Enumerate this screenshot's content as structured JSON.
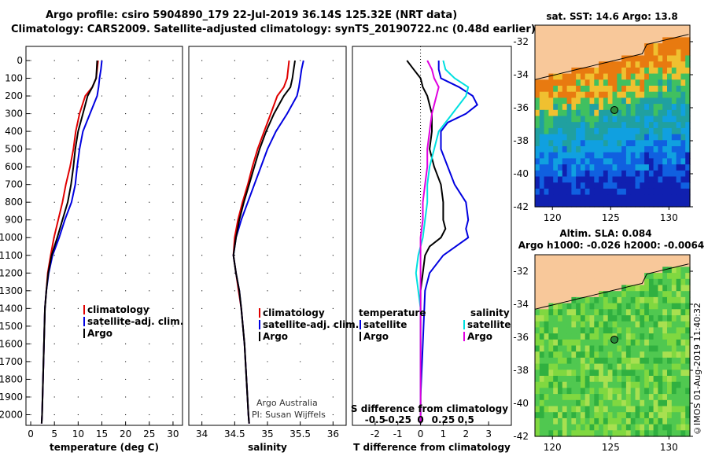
{
  "header": {
    "title_line1": "Argo profile: csiro 5904890_179 22-Jul-2019 36.14S 125.32E (NRT data)",
    "title_line2": "Climatology: CARS2009. Satellite-adjusted climatology: synTS_20190722.nc (0.48d earlier)"
  },
  "footer": {
    "stamp": "©IMOS 01-Aug-2019 11:40:32"
  },
  "colors": {
    "climatology": "#e00000",
    "satellite": "#0000e0",
    "argo": "#000000",
    "sat_salinity": "#00e0e0",
    "argo_salinity": "#e000e0",
    "land": "#f8c89a"
  },
  "chart_data": [
    {
      "type": "line",
      "name": "temperature",
      "xlabel": "temperature (deg C)",
      "ylabel": "",
      "xlim": [
        -1,
        32
      ],
      "ylim": [
        2060,
        0
      ],
      "xticks": [
        0,
        5,
        10,
        15,
        20,
        25,
        30
      ],
      "yticks": [
        0,
        100,
        200,
        300,
        400,
        500,
        600,
        700,
        800,
        900,
        1000,
        1100,
        1200,
        1300,
        1400,
        1500,
        1600,
        1700,
        1800,
        1900,
        2000
      ],
      "legend": [
        "climatology",
        "satellite-adj. clim.",
        "Argo"
      ],
      "series": [
        {
          "name": "climatology",
          "y": [
            0,
            50,
            100,
            150,
            200,
            300,
            400,
            500,
            600,
            700,
            800,
            900,
            1000,
            1100,
            1200,
            1300,
            1400,
            1600,
            1800,
            2000,
            2050
          ],
          "x": [
            14.2,
            14.0,
            13.8,
            13.0,
            11.5,
            10.3,
            9.5,
            9.0,
            8.3,
            7.4,
            6.7,
            5.8,
            4.9,
            4.2,
            3.6,
            3.3,
            3.0,
            2.8,
            2.6,
            2.4,
            2.3
          ]
        },
        {
          "name": "satellite-adj. clim.",
          "y": [
            0,
            50,
            100,
            150,
            200,
            300,
            400,
            500,
            600,
            700,
            800,
            900,
            1000,
            1100,
            1200,
            1300,
            1400,
            1600,
            1800,
            2000,
            2050
          ],
          "x": [
            15.0,
            14.8,
            14.5,
            14.3,
            14.0,
            12.5,
            11.0,
            10.3,
            9.8,
            9.4,
            8.6,
            7.2,
            6.0,
            4.6,
            3.8,
            3.3,
            3.0,
            2.8,
            2.6,
            2.4,
            2.3
          ]
        },
        {
          "name": "Argo",
          "y": [
            0,
            50,
            100,
            150,
            200,
            300,
            400,
            500,
            600,
            700,
            800,
            900,
            1000,
            1100,
            1200,
            1300,
            1400,
            1600,
            1800,
            2000,
            2050
          ],
          "x": [
            14.0,
            13.9,
            13.8,
            13.0,
            12.0,
            11.0,
            10.0,
            9.4,
            9.0,
            8.5,
            7.8,
            6.7,
            5.6,
            4.4,
            3.7,
            3.3,
            3.0,
            2.8,
            2.6,
            2.4,
            2.3
          ]
        }
      ]
    },
    {
      "type": "line",
      "name": "salinity",
      "xlabel": "salinity",
      "xlim": [
        33.8,
        36.2
      ],
      "ylim": [
        2060,
        0
      ],
      "xticks": [
        34,
        34.5,
        35,
        35.5,
        36
      ],
      "legend": [
        "climatology",
        "satellite-adj. clim.",
        "Argo"
      ],
      "annotation": [
        "Argo Australia",
        "PI: Susan Wijffels"
      ],
      "series": [
        {
          "name": "climatology",
          "y": [
            0,
            100,
            150,
            200,
            300,
            400,
            500,
            600,
            700,
            800,
            900,
            1000,
            1100,
            1200,
            1300,
            1400,
            1600,
            1800,
            2000,
            2050
          ],
          "x": [
            35.33,
            35.3,
            35.25,
            35.15,
            35.05,
            34.95,
            34.85,
            34.77,
            34.7,
            34.62,
            34.55,
            34.5,
            34.48,
            34.52,
            34.56,
            34.6,
            34.65,
            34.68,
            34.71,
            34.72
          ]
        },
        {
          "name": "satellite-adj. clim.",
          "y": [
            0,
            50,
            100,
            150,
            200,
            300,
            400,
            500,
            600,
            700,
            800,
            900,
            1000,
            1100,
            1200,
            1300,
            1400,
            1600,
            1800,
            2000,
            2050
          ],
          "x": [
            35.55,
            35.52,
            35.5,
            35.48,
            35.45,
            35.3,
            35.13,
            35.0,
            34.9,
            34.8,
            34.7,
            34.6,
            34.52,
            34.48,
            34.52,
            34.57,
            34.6,
            34.65,
            34.68,
            34.71,
            34.72
          ]
        },
        {
          "name": "Argo",
          "y": [
            0,
            50,
            100,
            150,
            200,
            300,
            400,
            500,
            600,
            700,
            800,
            900,
            1000,
            1100,
            1200,
            1300,
            1400,
            1600,
            1800,
            2000,
            2050
          ],
          "x": [
            35.42,
            35.4,
            35.38,
            35.35,
            35.25,
            35.1,
            34.98,
            34.88,
            34.8,
            34.72,
            34.64,
            34.57,
            34.52,
            34.48,
            34.52,
            34.57,
            34.6,
            34.65,
            34.68,
            34.71,
            34.72
          ]
        }
      ]
    },
    {
      "type": "line",
      "name": "difference from climatology",
      "xlabel": "T difference from climatology",
      "top_axis_label": "S difference from climatology",
      "xlim": [
        -3,
        4
      ],
      "ylim": [
        2060,
        0
      ],
      "xticks": [
        -2,
        -1,
        0,
        1,
        2,
        3
      ],
      "top_ticks": [
        "-0.5",
        "-0.25",
        "0",
        "0.25",
        "0.5"
      ],
      "top_tick_positions": [
        -2,
        -1,
        0,
        1,
        2
      ],
      "legend_left": {
        "header": "temperature",
        "items": [
          "satellite",
          "Argo"
        ]
      },
      "legend_right": {
        "header": "salinity",
        "items": [
          "satellite",
          "Argo"
        ]
      },
      "series": [
        {
          "name": "temperature satellite",
          "y": [
            0,
            50,
            100,
            150,
            200,
            250,
            300,
            350,
            400,
            500,
            600,
            700,
            800,
            900,
            950,
            1000,
            1100,
            1200,
            1300,
            1600,
            1900,
            2050
          ],
          "x": [
            0.8,
            0.8,
            0.9,
            1.7,
            2.3,
            2.5,
            2.0,
            1.2,
            0.9,
            0.9,
            1.2,
            1.5,
            2.0,
            2.1,
            2.0,
            2.1,
            1.0,
            0.4,
            0.2,
            0.1,
            0.0,
            0.0
          ]
        },
        {
          "name": "temperature Argo",
          "y": [
            0,
            50,
            100,
            150,
            200,
            300,
            400,
            500,
            600,
            700,
            800,
            900,
            950,
            1000,
            1050,
            1100,
            1200,
            1300,
            1600,
            1900,
            2050
          ],
          "x": [
            -0.6,
            -0.3,
            0.0,
            0.1,
            0.3,
            0.5,
            0.5,
            0.4,
            0.6,
            0.9,
            1.0,
            1.0,
            1.1,
            0.9,
            0.4,
            0.2,
            0.1,
            0.0,
            0.0,
            0.0,
            0.0
          ]
        },
        {
          "name": "salinity satellite",
          "y": [
            0,
            50,
            100,
            150,
            200,
            300,
            400,
            500,
            600,
            700,
            800,
            900,
            1000,
            1100,
            1200,
            1300,
            1400,
            1600,
            1800,
            2050
          ],
          "x": [
            1.0,
            1.1,
            1.5,
            2.1,
            2.0,
            1.4,
            0.8,
            0.6,
            0.4,
            0.3,
            0.3,
            0.2,
            0.1,
            -0.1,
            -0.2,
            -0.1,
            0.0,
            0.0,
            0.0,
            0.0
          ]
        },
        {
          "name": "salinity Argo",
          "y": [
            0,
            50,
            100,
            150,
            200,
            300,
            400,
            500,
            600,
            700,
            800,
            900,
            1000,
            1200,
            1500,
            1800,
            2050
          ],
          "x": [
            0.3,
            0.5,
            0.6,
            0.8,
            0.7,
            0.5,
            0.4,
            0.3,
            0.3,
            0.2,
            0.1,
            0.1,
            0.0,
            0.0,
            0.0,
            0.0,
            0.0
          ]
        }
      ]
    },
    {
      "type": "heatmap",
      "name": "SST map",
      "title": "sat. SST: 14.6 Argo: 13.8",
      "xlim": [
        118.5,
        131.8
      ],
      "ylim": [
        -42,
        -31
      ],
      "xticks": [
        120,
        125,
        130
      ],
      "yticks": [
        -32,
        -34,
        -36,
        -38,
        -40,
        -42
      ],
      "float_position": {
        "lon": 125.32,
        "lat": -36.14
      }
    },
    {
      "type": "heatmap",
      "name": "SLA map",
      "title": [
        "Altim. SLA: 0.084",
        "Argo h1000: -0.026 h2000: -0.0064"
      ],
      "xlim": [
        118.5,
        131.8
      ],
      "ylim": [
        -42,
        -31
      ],
      "xticks": [
        120,
        125,
        130
      ],
      "yticks": [
        -32,
        -34,
        -36,
        -38,
        -40,
        -42
      ],
      "float_position": {
        "lon": 125.32,
        "lat": -36.14
      }
    }
  ]
}
